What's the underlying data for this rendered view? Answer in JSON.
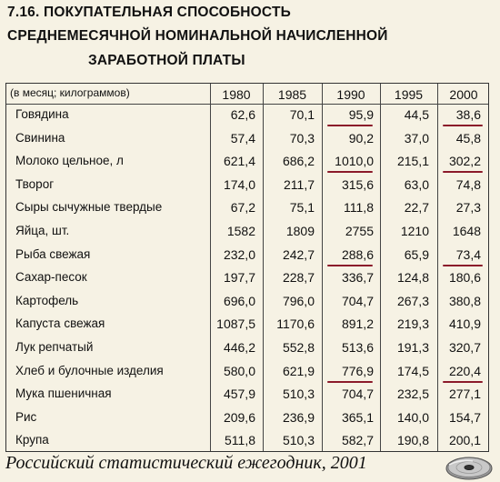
{
  "title": {
    "line1": "7.16. ПОКУПАТЕЛЬНАЯ СПОСОБНОСТЬ",
    "line2": "СРЕДНЕМЕСЯЧНОЙ НОМИНАЛЬНОЙ НАЧИСЛЕННОЙ",
    "line3": "ЗАРАБОТНОЙ ПЛАТЫ"
  },
  "table": {
    "header_label": "(в месяц; килограммов)",
    "years": [
      "1980",
      "1985",
      "1990",
      "1995",
      "2000"
    ],
    "rows": [
      {
        "label": "Говядина",
        "values": [
          "62,6",
          "70,1",
          "95,9",
          "44,5",
          "38,6"
        ]
      },
      {
        "label": "Свинина",
        "values": [
          "57,4",
          "70,3",
          "90,2",
          "37,0",
          "45,8"
        ]
      },
      {
        "label": "Молоко цельное, л",
        "values": [
          "621,4",
          "686,2",
          "1010,0",
          "215,1",
          "302,2"
        ]
      },
      {
        "label": "Творог",
        "values": [
          "174,0",
          "211,7",
          "315,6",
          "63,0",
          "74,8"
        ]
      },
      {
        "label": "Сыры сычужные твердые",
        "values": [
          "67,2",
          "75,1",
          "111,8",
          "22,7",
          "27,3"
        ]
      },
      {
        "label": "Яйца, шт.",
        "values": [
          "1582",
          "1809",
          "2755",
          "1210",
          "1648"
        ]
      },
      {
        "label": "Рыба свежая",
        "values": [
          "232,0",
          "242,7",
          "288,6",
          "65,9",
          "73,4"
        ]
      },
      {
        "label": "Сахар-песок",
        "values": [
          "197,7",
          "228,7",
          "336,7",
          "124,8",
          "180,6"
        ]
      },
      {
        "label": "Картофель",
        "values": [
          "696,0",
          "796,0",
          "704,7",
          "267,3",
          "380,8"
        ]
      },
      {
        "label": "Капуста свежая",
        "values": [
          "1087,5",
          "1170,6",
          "891,2",
          "219,3",
          "410,9"
        ]
      },
      {
        "label": "Лук репчатый",
        "values": [
          "446,2",
          "552,8",
          "513,6",
          "191,3",
          "320,7"
        ]
      },
      {
        "label": "Хлеб и булочные изделия",
        "values": [
          "580,0",
          "621,9",
          "776,9",
          "174,5",
          "220,4"
        ]
      },
      {
        "label": "Мука пшеничная",
        "values": [
          "457,9",
          "510,3",
          "704,7",
          "232,5",
          "277,1"
        ]
      },
      {
        "label": "Рис",
        "values": [
          "209,6",
          "236,9",
          "365,1",
          "140,0",
          "154,7"
        ]
      },
      {
        "label": "Крупа",
        "values": [
          "511,8",
          "510,3",
          "582,7",
          "190,8",
          "200,1"
        ]
      }
    ],
    "underlined": [
      {
        "row": 0,
        "col": 2
      },
      {
        "row": 0,
        "col": 4
      },
      {
        "row": 2,
        "col": 2
      },
      {
        "row": 2,
        "col": 4
      },
      {
        "row": 6,
        "col": 2
      },
      {
        "row": 6,
        "col": 4
      },
      {
        "row": 11,
        "col": 2
      },
      {
        "row": 11,
        "col": 4
      }
    ]
  },
  "source": "Российский статистический ежегодник, 2001",
  "colors": {
    "background": "#f6f2e4",
    "underline": "#8b1a2a",
    "text": "#111111"
  },
  "icons": {
    "disc": "cd-disc-icon"
  }
}
